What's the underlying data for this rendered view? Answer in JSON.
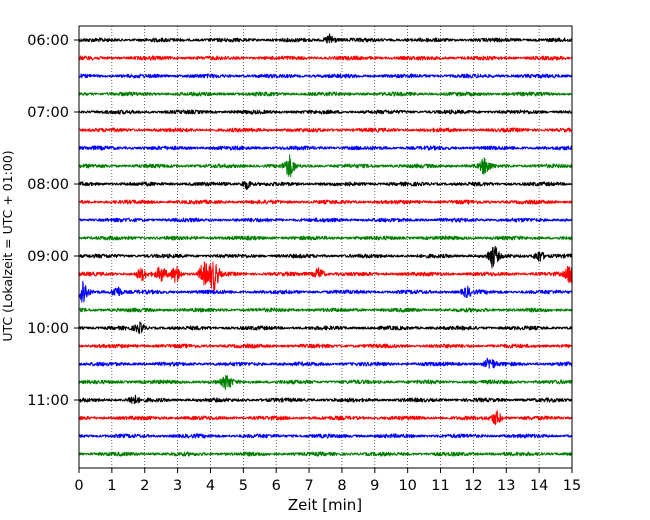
{
  "chart_data": {
    "type": "line",
    "title": "",
    "xlabel": "Zeit  [min]",
    "ylabel": "UTC (Lokalzeit = UTC + 01:00)",
    "xlim": [
      0,
      15
    ],
    "x_ticks": [
      "0",
      "1",
      "2",
      "3",
      "4",
      "5",
      "6",
      "7",
      "8",
      "9",
      "10",
      "11",
      "12",
      "13",
      "14",
      "15"
    ],
    "y_tick_labels": [
      "06:00",
      "07:00",
      "08:00",
      "09:00",
      "10:00",
      "11:00"
    ],
    "grid": "vertical dotted",
    "traces": [
      {
        "start": "06:00",
        "color": "#000000"
      },
      {
        "start": "06:15",
        "color": "#ff0000"
      },
      {
        "start": "06:30",
        "color": "#0000ff"
      },
      {
        "start": "06:45",
        "color": "#008000"
      },
      {
        "start": "07:00",
        "color": "#000000"
      },
      {
        "start": "07:15",
        "color": "#ff0000"
      },
      {
        "start": "07:30",
        "color": "#0000ff"
      },
      {
        "start": "07:45",
        "color": "#008000"
      },
      {
        "start": "08:00",
        "color": "#000000"
      },
      {
        "start": "08:15",
        "color": "#ff0000"
      },
      {
        "start": "08:30",
        "color": "#0000ff"
      },
      {
        "start": "08:45",
        "color": "#008000"
      },
      {
        "start": "09:00",
        "color": "#000000"
      },
      {
        "start": "09:15",
        "color": "#ff0000"
      },
      {
        "start": "09:30",
        "color": "#0000ff"
      },
      {
        "start": "09:45",
        "color": "#008000"
      },
      {
        "start": "10:00",
        "color": "#000000"
      },
      {
        "start": "10:15",
        "color": "#ff0000"
      },
      {
        "start": "10:30",
        "color": "#0000ff"
      },
      {
        "start": "10:45",
        "color": "#008000"
      },
      {
        "start": "11:00",
        "color": "#000000"
      },
      {
        "start": "11:15",
        "color": "#ff0000"
      },
      {
        "start": "11:30",
        "color": "#0000ff"
      },
      {
        "start": "11:45",
        "color": "#008000"
      }
    ],
    "events": [
      {
        "start": "06:00",
        "minute": 7.65,
        "amplitude": 2.5
      },
      {
        "start": "07:45",
        "minute": 6.4,
        "amplitude": 4.5
      },
      {
        "start": "07:45",
        "minute": 12.35,
        "amplitude": 3.5
      },
      {
        "start": "08:00",
        "minute": 5.1,
        "amplitude": 2
      },
      {
        "start": "09:00",
        "minute": 12.6,
        "amplitude": 5
      },
      {
        "start": "09:00",
        "minute": 14.0,
        "amplitude": 2.5
      },
      {
        "start": "09:15",
        "minute": 1.9,
        "amplitude": 2.5
      },
      {
        "start": "09:15",
        "minute": 2.5,
        "amplitude": 3
      },
      {
        "start": "09:15",
        "minute": 2.95,
        "amplitude": 3.5
      },
      {
        "start": "09:15",
        "minute": 3.8,
        "amplitude": 5
      },
      {
        "start": "09:15",
        "minute": 4.1,
        "amplitude": 7
      },
      {
        "start": "09:15",
        "minute": 7.3,
        "amplitude": 2.5
      },
      {
        "start": "09:15",
        "minute": 14.95,
        "amplitude": 4
      },
      {
        "start": "09:30",
        "minute": 0.1,
        "amplitude": 6
      },
      {
        "start": "09:30",
        "minute": 1.15,
        "amplitude": 2.5
      },
      {
        "start": "09:30",
        "minute": 11.8,
        "amplitude": 2
      },
      {
        "start": "10:00",
        "minute": 1.85,
        "amplitude": 2
      },
      {
        "start": "10:30",
        "minute": 12.5,
        "amplitude": 2.5
      },
      {
        "start": "10:45",
        "minute": 4.5,
        "amplitude": 3
      },
      {
        "start": "11:00",
        "minute": 1.65,
        "amplitude": 2
      },
      {
        "start": "11:15",
        "minute": 12.7,
        "amplitude": 3
      }
    ]
  }
}
